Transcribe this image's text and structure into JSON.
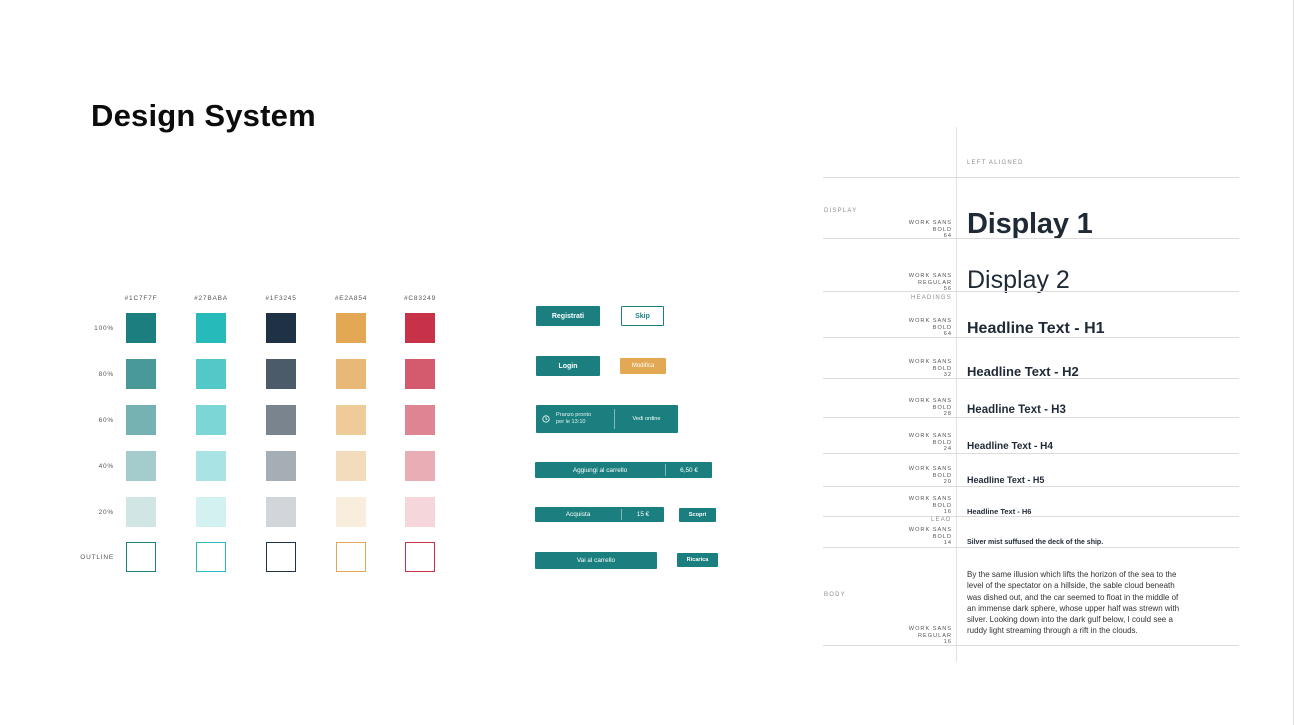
{
  "page": {
    "title": "Design System"
  },
  "palette": {
    "colors": [
      {
        "hex_label": "#1C7F7F",
        "color": "#1c7f7f",
        "rgb": "28,127,127"
      },
      {
        "hex_label": "#27BABA",
        "color": "#27baba",
        "rgb": "39,186,186"
      },
      {
        "hex_label": "#1F3245",
        "color": "#1f3245",
        "rgb": "31,50,69"
      },
      {
        "hex_label": "#E2A854",
        "color": "#e2a854",
        "rgb": "226,168,84"
      },
      {
        "hex_label": "#C83249",
        "color": "#c83249",
        "rgb": "200,50,73"
      }
    ],
    "rows": [
      {
        "label": "100%",
        "opacity": 1.0
      },
      {
        "label": "80%",
        "opacity": 0.8
      },
      {
        "label": "60%",
        "opacity": 0.6
      },
      {
        "label": "40%",
        "opacity": 0.4
      },
      {
        "label": "20%",
        "opacity": 0.2
      },
      {
        "label": "OUTLINE",
        "opacity": 0
      }
    ]
  },
  "buttons": {
    "registrati": "Registrati",
    "skip": "Skip",
    "login": "Login",
    "modifica": "Modifica",
    "pranzo_line1": "Pranzo pronto",
    "pranzo_line2": "per le 13:10",
    "vedi_ordine": "Vedi ordine",
    "aggiungi": "Aggiungi al carrello",
    "aggiungi_price": "6,50 €",
    "acquista": "Acquista",
    "acquista_price": "15 €",
    "scopri": "Scopri",
    "vai_carrello": "Vai al carrello",
    "ricarica": "Ricarica"
  },
  "typography": {
    "left_aligned": "LEFT ALIGNED",
    "section_display": "DISPLAY",
    "section_headings": "HEADINGS",
    "section_lead": "LEAD",
    "section_body": "BODY",
    "display1": {
      "meta1": "WORK SANS",
      "meta2": "BOLD",
      "meta3": "64",
      "sample": "Display 1"
    },
    "display2": {
      "meta1": "WORK SANS",
      "meta2": "REGULAR",
      "meta3": "56",
      "sample": "Display 2"
    },
    "h1": {
      "meta1": "WORK SANS",
      "meta2": "BOLD",
      "meta3": "64",
      "sample": "Headline Text - H1"
    },
    "h2": {
      "meta1": "WORK SANS",
      "meta2": "BOLD",
      "meta3": "32",
      "sample": "Headline Text - H2"
    },
    "h3": {
      "meta1": "WORK SANS",
      "meta2": "BOLD",
      "meta3": "28",
      "sample": "Headline Text - H3"
    },
    "h4": {
      "meta1": "WORK SANS",
      "meta2": "BOLD",
      "meta3": "24",
      "sample": "Headline Text - H4"
    },
    "h5": {
      "meta1": "WORK SANS",
      "meta2": "BOLD",
      "meta3": "20",
      "sample": "Headline Text - H5"
    },
    "h6": {
      "meta1": "WORK SANS",
      "meta2": "BOLD",
      "meta3": "16",
      "sample": "Headline Text - H6"
    },
    "lead": {
      "meta1": "WORK SANS",
      "meta2": "BOLD",
      "meta3": "14",
      "sample": "Silver mist suffused the deck of the ship."
    },
    "body": {
      "meta1": "WORK SANS",
      "meta2": "REGULAR",
      "meta3": "16",
      "sample": "By the same illusion which lifts the horizon of the sea to the level of the spectator on a hillside, the sable cloud beneath was dished out, and the car seemed to float in the middle of an immense dark sphere, whose upper half was strewn with silver. Looking down into the dark gulf below, I could see a ruddy light streaming through a rift in the clouds."
    }
  }
}
